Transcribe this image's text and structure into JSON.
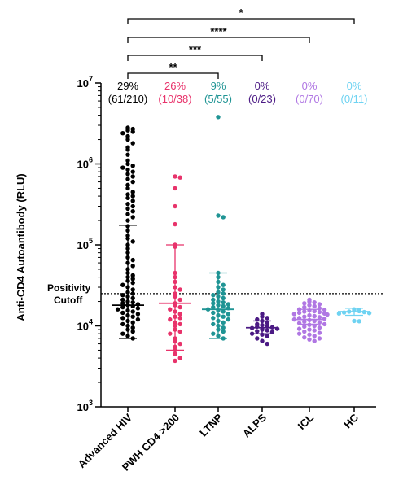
{
  "chart_data": {
    "type": "scatter",
    "ylabel": "Anti-CD4 Autoantibody (RLU)",
    "yscale": "log",
    "ylim": [
      1000,
      10000000
    ],
    "y_ticks": [
      {
        "base": "10",
        "exp": "3"
      },
      {
        "base": "10",
        "exp": "4"
      },
      {
        "base": "10",
        "exp": "5"
      },
      {
        "base": "10",
        "exp": "6"
      },
      {
        "base": "10",
        "exp": "7"
      }
    ],
    "cutoff": {
      "value": 25000,
      "label_line1": "Positivity",
      "label_line2": "Cutoff"
    },
    "groups": [
      {
        "name": "Advanced HIV",
        "color": "#000000",
        "percent": "29%",
        "fraction": "(61/210)",
        "median": 18000,
        "bar_low": 7000,
        "bar_high": 175000,
        "shape": "circle",
        "values": [
          2800000,
          2700000,
          2600000,
          2500000,
          2400000,
          2200000,
          2000000,
          1800000,
          1600000,
          1500000,
          1300000,
          1100000,
          1000000,
          950000,
          900000,
          850000,
          800000,
          750000,
          700000,
          650000,
          600000,
          550000,
          500000,
          450000,
          420000,
          400000,
          380000,
          350000,
          320000,
          300000,
          280000,
          260000,
          240000,
          220000,
          200000,
          170000,
          150000,
          130000,
          120000,
          110000,
          100000,
          90000,
          80000,
          70000,
          65000,
          60000,
          55000,
          50000,
          45000,
          42000,
          40000,
          38000,
          36000,
          34000,
          32000,
          30000,
          28000,
          26000,
          25000,
          24000,
          23000,
          22000,
          21000,
          20000,
          19500,
          19000,
          18500,
          18000,
          17500,
          17000,
          16500,
          16000,
          15500,
          15000,
          14500,
          14000,
          13500,
          13000,
          12500,
          12000,
          11500,
          11000,
          10500,
          10000,
          9500,
          9000,
          8500,
          8000,
          7500,
          7000
        ]
      },
      {
        "name": "PWH CD4 >200",
        "color": "#e8336b",
        "percent": "26%",
        "fraction": "(10/38)",
        "median": 19000,
        "bar_low": 5000,
        "bar_high": 100000,
        "shape": "circle",
        "values": [
          700000,
          680000,
          500000,
          300000,
          180000,
          100000,
          95000,
          45000,
          40000,
          35000,
          30000,
          28000,
          25000,
          23000,
          21000,
          19000,
          18000,
          17000,
          16000,
          15000,
          14000,
          13000,
          12500,
          12000,
          11000,
          10500,
          10000,
          9000,
          8500,
          8000,
          7000,
          6500,
          6000,
          5500,
          5000,
          4500,
          4000,
          3700
        ]
      },
      {
        "name": "LTNP",
        "color": "#1f9494",
        "percent": "9%",
        "fraction": "(5/55)",
        "median": 16000,
        "bar_low": 7000,
        "bar_high": 45000,
        "shape": "circle",
        "values": [
          3800000,
          230000,
          220000,
          45000,
          40000,
          35000,
          32000,
          30000,
          28000,
          26000,
          25000,
          24000,
          23000,
          22000,
          21000,
          20000,
          19500,
          19000,
          18500,
          18000,
          17500,
          17000,
          16500,
          16000,
          15500,
          15000,
          14500,
          14000,
          13500,
          13000,
          12500,
          12000,
          11500,
          11000,
          10500,
          10000,
          9500,
          9000,
          8500,
          8000,
          7500,
          7000
        ]
      },
      {
        "name": "ALPS",
        "color": "#4b1a84",
        "percent": "0%",
        "fraction": "(0/23)",
        "median": 9500,
        "bar_low": 8000,
        "bar_high": 11500,
        "shape": "circle",
        "values": [
          14000,
          13000,
          12500,
          12000,
          11500,
          11000,
          10500,
          10200,
          10000,
          9800,
          9600,
          9400,
          9200,
          9000,
          8800,
          8600,
          8400,
          8000,
          7800,
          7500,
          7000,
          6500,
          6000
        ]
      },
      {
        "name": "ICL",
        "color": "#b077e3",
        "percent": "0%",
        "fraction": "(0/70)",
        "median": 12000,
        "bar_low": 10500,
        "bar_high": 16000,
        "shape": "circle",
        "values": [
          21000,
          20000,
          19500,
          19000,
          18500,
          18000,
          17500,
          17000,
          16500,
          16000,
          15800,
          15500,
          15200,
          15000,
          14800,
          14500,
          14200,
          14000,
          13800,
          13500,
          13200,
          13000,
          12800,
          12500,
          12300,
          12000,
          11800,
          11500,
          11300,
          11000,
          10800,
          10500,
          10300,
          10000,
          9800,
          9500,
          9200,
          9000,
          8800,
          8500,
          8200,
          8000,
          7800,
          7500,
          7200,
          7000,
          6800,
          6500
        ]
      },
      {
        "name": "HC",
        "color": "#6fd3f2",
        "percent": "0%",
        "fraction": "(0/11)",
        "median": 15000,
        "bar_low": 13500,
        "bar_high": 16500,
        "shape": "circle",
        "values": [
          16000,
          15800,
          15500,
          15200,
          15000,
          14800,
          14600,
          14400,
          14200,
          11500,
          11400
        ]
      }
    ],
    "comparisons": [
      {
        "label": "**",
        "from": "Advanced HIV",
        "to": "LTNP"
      },
      {
        "label": "***",
        "from": "Advanced HIV",
        "to": "ALPS"
      },
      {
        "label": "****",
        "from": "Advanced HIV",
        "to": "ICL"
      },
      {
        "label": "*",
        "from": "Advanced HIV",
        "to": "HC"
      }
    ]
  }
}
